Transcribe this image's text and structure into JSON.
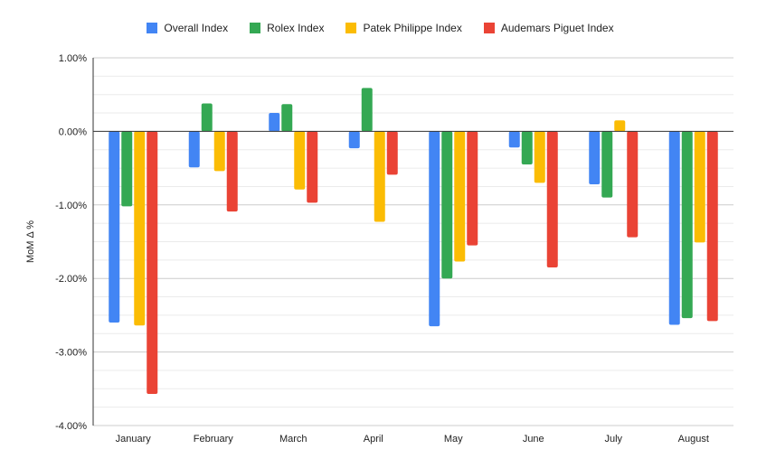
{
  "chart_data": {
    "type": "bar",
    "title": "",
    "xlabel": "",
    "ylabel": "MoM Δ %",
    "ylim": [
      -4,
      1
    ],
    "yticks": [
      "1.00%",
      "0.00%",
      "-1.00%",
      "-2.00%",
      "-3.00%",
      "-4.00%"
    ],
    "ytick_values": [
      1,
      0,
      -1,
      -2,
      -3,
      -4
    ],
    "grid": true,
    "legend_position": "top",
    "categories": [
      "January",
      "February",
      "March",
      "April",
      "May",
      "June",
      "July",
      "August"
    ],
    "series": [
      {
        "name": "Overall Index",
        "color": "#4285F4",
        "values": [
          -2.6,
          -0.49,
          0.25,
          -0.23,
          -2.65,
          -0.22,
          -0.72,
          -2.63
        ]
      },
      {
        "name": "Rolex Index",
        "color": "#34A853",
        "values": [
          -1.02,
          0.38,
          0.37,
          0.59,
          -2.0,
          -0.45,
          -0.9,
          -2.54
        ]
      },
      {
        "name": "Patek Philippe Index",
        "color": "#FBBC04",
        "values": [
          -2.64,
          -0.54,
          -0.79,
          -1.23,
          -1.77,
          -0.7,
          0.15,
          -1.51
        ]
      },
      {
        "name": "Audemars Piguet Index",
        "color": "#EA4335",
        "values": [
          -3.57,
          -1.09,
          -0.97,
          -0.59,
          -1.55,
          -1.85,
          -1.44,
          -2.58
        ]
      }
    ]
  }
}
